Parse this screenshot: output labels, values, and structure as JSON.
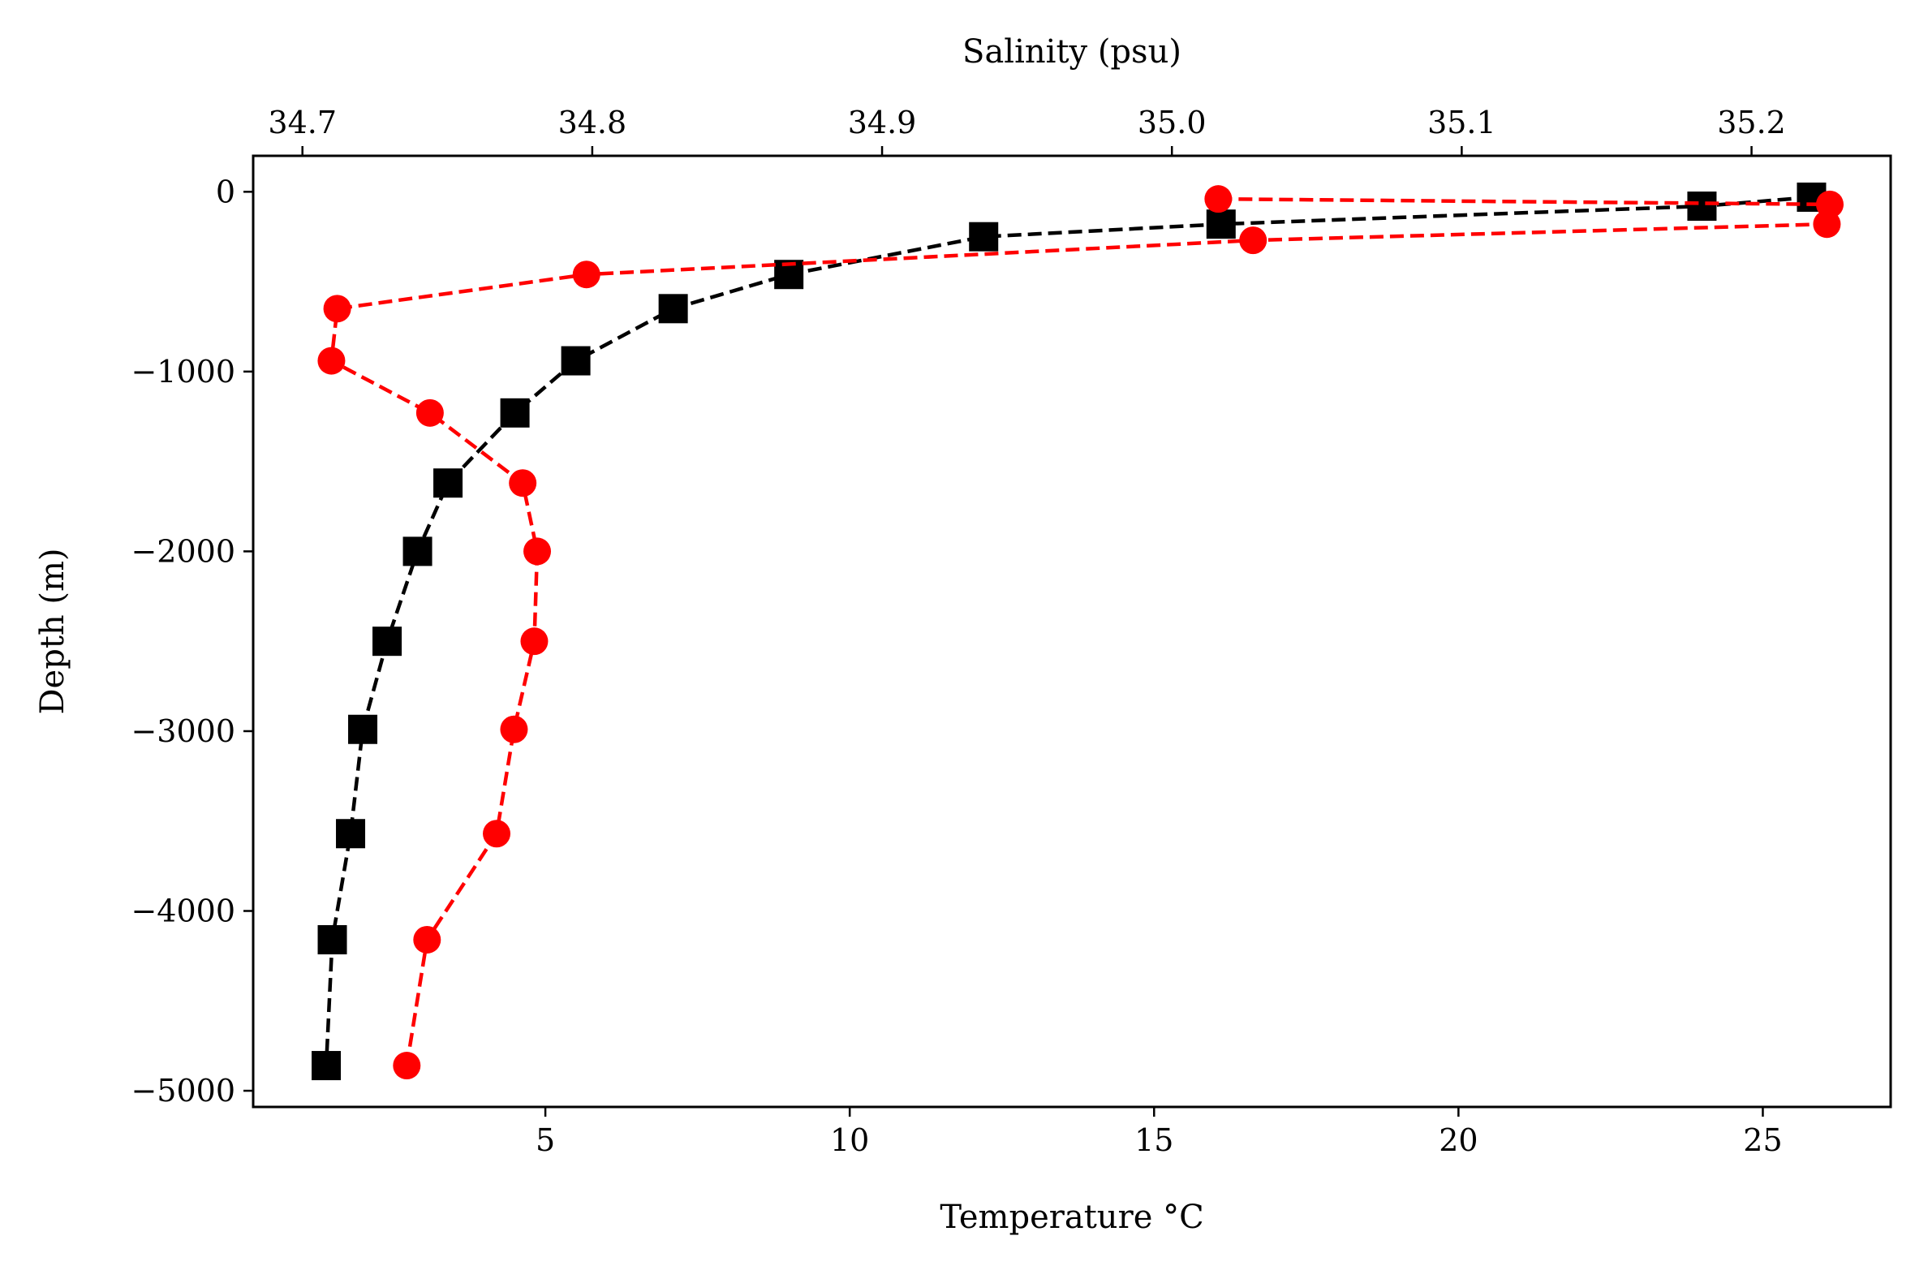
{
  "chart_data": {
    "type": "line",
    "xlabel": "Temperature °C",
    "x2label": "Salinity (psu)",
    "ylabel": "Depth (m)",
    "xlim": [
      0.2,
      27.1
    ],
    "x2lim": [
      34.683,
      35.248
    ],
    "ylim": [
      -5090,
      200
    ],
    "xticks": [
      5,
      10,
      15,
      20,
      25
    ],
    "x2ticks": [
      34.7,
      34.8,
      34.9,
      35.0,
      35.1,
      35.2
    ],
    "yticks": [
      0,
      -1000,
      -2000,
      -3000,
      -4000,
      -5000
    ],
    "xtick_labels": [
      "5",
      "10",
      "15",
      "20",
      "25"
    ],
    "x2tick_labels": [
      "34.7",
      "34.8",
      "34.9",
      "35.0",
      "35.1",
      "35.2"
    ],
    "ytick_labels": [
      "0",
      "−1000",
      "−2000",
      "−3000",
      "−4000",
      "−5000"
    ],
    "grid": false,
    "legend": "none",
    "series": [
      {
        "axis": "bottom",
        "color": "#000000",
        "marker": "square",
        "linestyle": "dashed",
        "depth": [
          -30,
          -80,
          -180,
          -250,
          -460,
          -650,
          -940,
          -1230,
          -1620,
          -2000,
          -2500,
          -2990,
          -3570,
          -4160,
          -4860
        ],
        "values": [
          25.8,
          24.0,
          16.1,
          12.2,
          9.0,
          7.1,
          5.5,
          4.5,
          3.4,
          2.9,
          2.4,
          2.0,
          1.8,
          1.5,
          1.4
        ]
      },
      {
        "axis": "top",
        "color": "#ff0000",
        "marker": "circle",
        "linestyle": "dashed",
        "depth": [
          -40,
          -70,
          -180,
          -270,
          -460,
          -650,
          -940,
          -1230,
          -1620,
          -2000,
          -2500,
          -2990,
          -3570,
          -4160,
          -4860
        ],
        "values": [
          35.016,
          35.227,
          35.226,
          35.028,
          34.798,
          34.712,
          34.71,
          34.744,
          34.776,
          34.781,
          34.78,
          34.773,
          34.767,
          34.743,
          34.736
        ]
      }
    ]
  }
}
